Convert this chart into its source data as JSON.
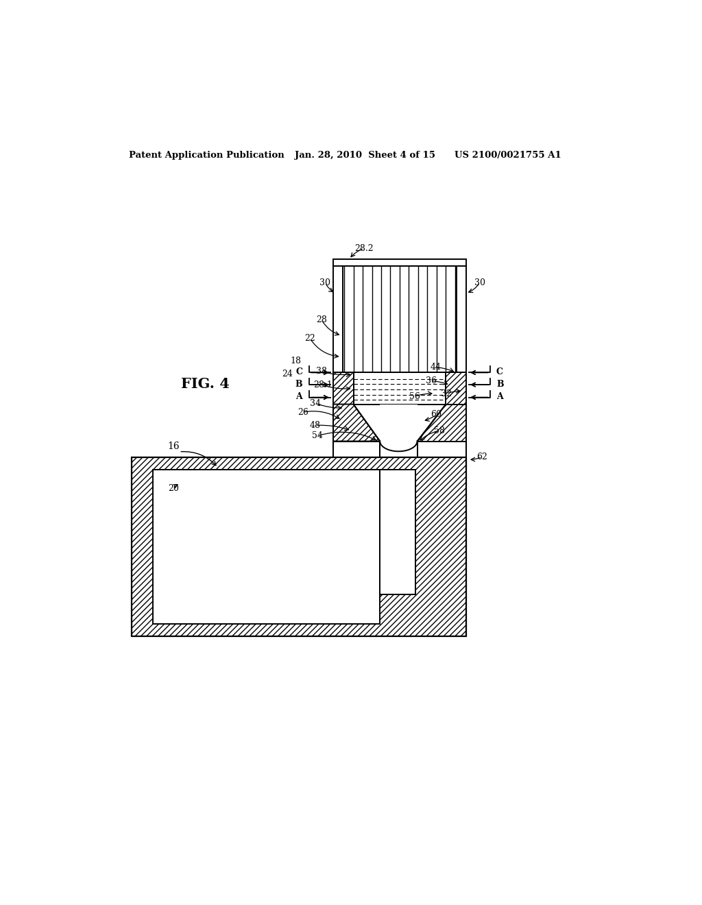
{
  "bg": "#ffffff",
  "lc": "#000000",
  "header_left": "Patent Application Publication",
  "header_mid": "Jan. 28, 2010  Sheet 4 of 15",
  "header_right": "US 2100/0021755 A1",
  "fig_label": "FIG. 4"
}
